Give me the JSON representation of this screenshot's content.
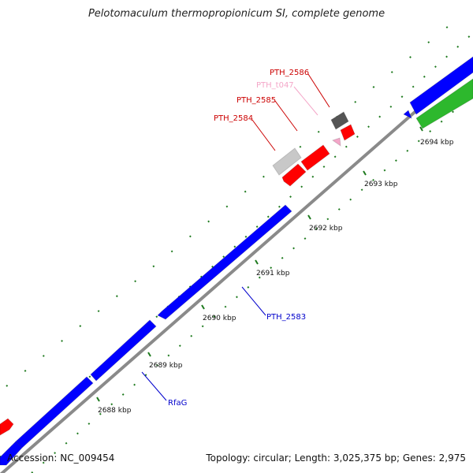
{
  "title": "Pelotomaculum thermopropionicum SI, complete genome",
  "footer": {
    "accession": "Accession: NC_009454",
    "summary": "Topology: circular; Length: 3,025,375 bp; Genes: 2,975"
  },
  "colors": {
    "backbone": "#8a8a8a",
    "tick": "#1e7a1e",
    "tick_label": "#111111",
    "forward_gene": "#0000ff",
    "reverse_gene": "#ff0000",
    "rrna_gene": "#2db82d",
    "trna_gene": "#f4a6c8",
    "pseudo_gene": "#c8c8c8",
    "dark_gene": "#555555"
  },
  "ticks": [
    {
      "label": "2688 kbp"
    },
    {
      "label": "2689 kbp"
    },
    {
      "label": "2690 kbp"
    },
    {
      "label": "2691 kbp"
    },
    {
      "label": "2692 kbp"
    },
    {
      "label": "2693 kbp"
    },
    {
      "label": "2694 kbp"
    }
  ],
  "genes": [
    {
      "strand": "forward",
      "kind": "cds",
      "label": "RfaG"
    },
    {
      "strand": "forward",
      "kind": "cds",
      "label": ""
    },
    {
      "strand": "forward",
      "kind": "cds",
      "label": "PTH_2583"
    },
    {
      "strand": "forward",
      "kind": "cds",
      "label": ""
    },
    {
      "strand": "reverse",
      "kind": "cds",
      "label": ""
    },
    {
      "strand": "reverse",
      "kind": "cds",
      "label": "PTH_2584"
    },
    {
      "strand": "reverse",
      "kind": "pseudo",
      "label": ""
    },
    {
      "strand": "reverse",
      "kind": "cds",
      "label": "PTH_2585"
    },
    {
      "strand": "reverse",
      "kind": "trna",
      "label": "PTH_t047"
    },
    {
      "strand": "reverse",
      "kind": "other",
      "label": "PTH_2586"
    },
    {
      "strand": "reverse",
      "kind": "cds",
      "label": ""
    },
    {
      "strand": "forward",
      "kind": "cds",
      "label": ""
    },
    {
      "strand": "forward",
      "kind": "rrna",
      "label": ""
    }
  ],
  "label_colors": {
    "RfaG": "#0000cc",
    "PTH_2583": "#0000cc",
    "PTH_2584": "#cc0000",
    "PTH_2585": "#cc0000",
    "PTH_t047": "#f4a6c8",
    "PTH_2586": "#cc0000"
  }
}
